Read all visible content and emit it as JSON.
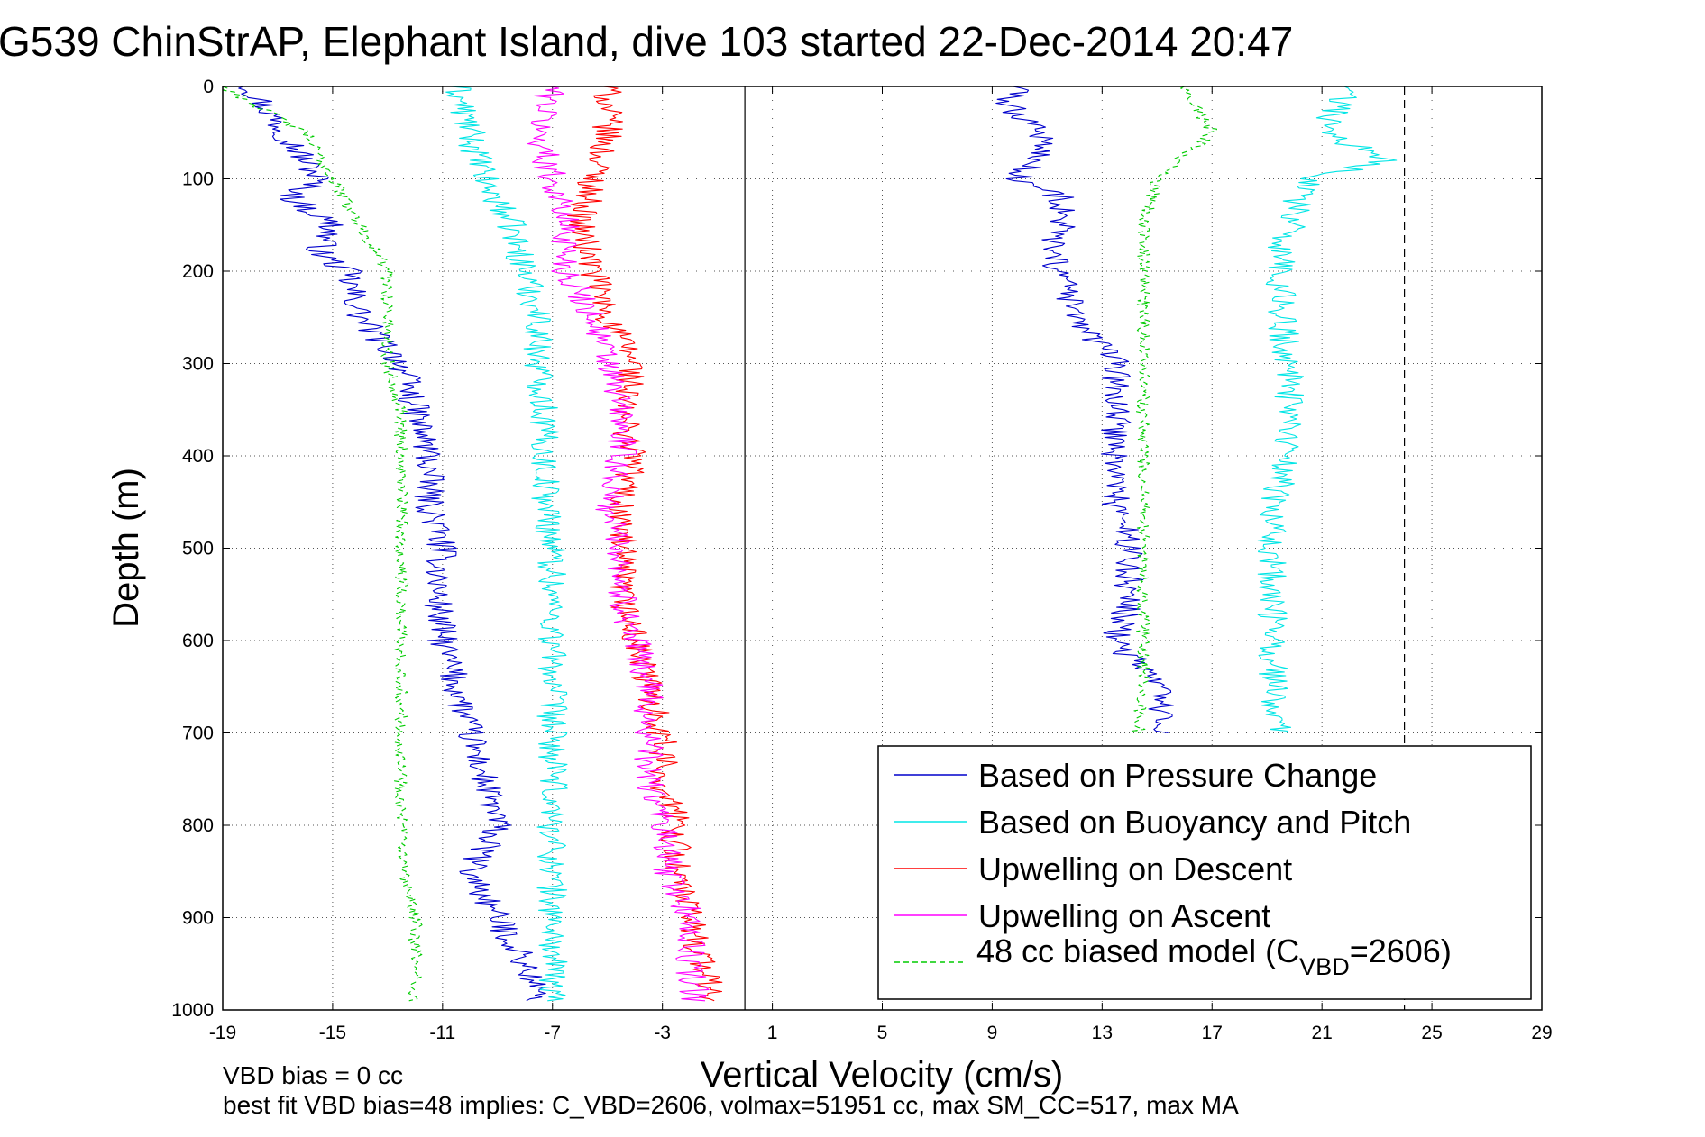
{
  "chart_data": {
    "type": "line",
    "title": "G539 ChinStrAP, Elephant Island, dive 103 started 22-Dec-2014 20:47",
    "xlabel": "Vertical Velocity (cm/s)",
    "ylabel": "Depth (m)",
    "xlim": [
      -19,
      29
    ],
    "ylim": [
      1000,
      0
    ],
    "y_reversed": true,
    "x_ticks": [
      -19,
      -15,
      -11,
      -7,
      -3,
      1,
      5,
      9,
      13,
      17,
      21,
      25,
      29
    ],
    "y_ticks": [
      0,
      100,
      200,
      300,
      400,
      500,
      600,
      700,
      800,
      900,
      1000
    ],
    "grid": true,
    "legend_position": "bottom-right",
    "reference_lines": [
      {
        "style": "solid",
        "x": 0
      },
      {
        "style": "dashed",
        "x": 24
      }
    ],
    "series": [
      {
        "name": "Based on Pressure Change",
        "color": "#0000cc",
        "style": "solid",
        "segments": [
          {
            "depth": [
              0,
              20,
              40,
              60,
              80,
              100,
              120,
              150,
              180,
              200,
              250,
              300,
              350,
              400,
              450,
              500,
              550,
              600,
              650,
              700,
              750,
              800,
              850,
              900,
              950,
              990
            ],
            "x": [
              -18,
              -17.5,
              -17,
              -16.5,
              -16,
              -15.5,
              -16.5,
              -15,
              -15.5,
              -14.5,
              -14,
              -12.5,
              -12,
              -11.5,
              -11.5,
              -11,
              -11.2,
              -11,
              -10.5,
              -10,
              -9.5,
              -9,
              -10,
              -9,
              -8,
              -7.5
            ]
          },
          {
            "depth": [
              0,
              20,
              40,
              60,
              80,
              100,
              120,
              150,
              180,
              200,
              250,
              300,
              350,
              400,
              450,
              500,
              550,
              600,
              650,
              700
            ],
            "x": [
              10,
              9.5,
              10.5,
              11,
              10.5,
              10,
              11.5,
              11.5,
              11,
              11.5,
              12,
              13.5,
              13.5,
              13.5,
              13.5,
              14,
              14,
              13.5,
              15,
              15.2
            ]
          }
        ]
      },
      {
        "name": "Based on Buoyancy and Pitch",
        "color": "#00e5e5",
        "style": "solid",
        "segments": [
          {
            "depth": [
              0,
              50,
              100,
              150,
              200,
              250,
              300,
              350,
              400,
              450,
              500,
              550,
              600,
              650,
              700,
              750,
              800,
              850,
              900,
              950,
              990
            ],
            "x": [
              -10.5,
              -10,
              -9.5,
              -8.5,
              -8,
              -7.5,
              -7.5,
              -7.3,
              -7.3,
              -7.2,
              -7,
              -7,
              -7,
              -7,
              -7,
              -7,
              -7,
              -7,
              -7,
              -7,
              -7
            ]
          },
          {
            "depth": [
              0,
              50,
              80,
              100,
              130,
              150,
              160,
              200,
              250,
              300,
              350,
              400,
              450,
              500,
              550,
              600,
              650,
              700
            ],
            "x": [
              22,
              21,
              23.5,
              20.5,
              20,
              20,
              19.5,
              19.5,
              19.5,
              19.8,
              19.8,
              19.8,
              19.2,
              19.2,
              19.2,
              19.2,
              19.2,
              19.5
            ]
          }
        ]
      },
      {
        "name": "Upwelling on Descent",
        "color": "#ff0000",
        "style": "solid",
        "segments": [
          {
            "depth": [
              0,
              50,
              100,
              150,
              200,
              250,
              300,
              350,
              400,
              450,
              500,
              550,
              600,
              650,
              700,
              750,
              800,
              850,
              900,
              950,
              990
            ],
            "x": [
              -5,
              -5,
              -5.5,
              -6,
              -5.5,
              -5,
              -4,
              -4.5,
              -4,
              -4.5,
              -4.5,
              -4.5,
              -4,
              -3.5,
              -3,
              -3,
              -2.5,
              -2.5,
              -2,
              -1.5,
              -1.2
            ]
          }
        ]
      },
      {
        "name": "Upwelling on Ascent",
        "color": "#ff00ff",
        "style": "solid",
        "segments": [
          {
            "depth": [
              0,
              50,
              100,
              150,
              200,
              250,
              300,
              350,
              400,
              450,
              500,
              550,
              600,
              650,
              700,
              750,
              800,
              850,
              900,
              950,
              990
            ],
            "x": [
              -7,
              -7.5,
              -7,
              -6.5,
              -6.5,
              -5.5,
              -5,
              -4.5,
              -4.5,
              -5,
              -4.5,
              -4.5,
              -4,
              -3.5,
              -3.5,
              -3.5,
              -3,
              -2.8,
              -2,
              -2,
              -1.8
            ]
          }
        ]
      },
      {
        "name": "48 cc biased model (C_VBD=2606)",
        "color": "#00cc00",
        "style": "dashed",
        "segments": [
          {
            "depth": [
              0,
              50,
              100,
              150,
              200,
              250,
              300,
              350,
              400,
              450,
              500,
              550,
              600,
              650,
              700,
              750,
              800,
              850,
              900,
              950,
              990
            ],
            "x": [
              -19,
              -16,
              -15,
              -14,
              -13,
              -13,
              -13,
              -12.5,
              -12.5,
              -12.5,
              -12.5,
              -12.5,
              -12.5,
              -12.5,
              -12.5,
              -12.5,
              -12.5,
              -12.5,
              -12,
              -12,
              -12
            ]
          },
          {
            "depth": [
              0,
              50,
              100,
              150,
              200,
              250,
              300,
              350,
              400,
              450,
              500,
              550,
              600,
              650,
              700
            ],
            "x": [
              16,
              17,
              15,
              14.5,
              14.5,
              14.5,
              14.5,
              14.5,
              14.5,
              14.5,
              14.5,
              14.5,
              14.5,
              14.5,
              14.3
            ]
          }
        ]
      }
    ]
  },
  "legend": {
    "items": [
      {
        "label": "Based on Pressure Change",
        "color": "#0000cc",
        "dash": ""
      },
      {
        "label": "Based on Buoyancy and Pitch",
        "color": "#00e5e5",
        "dash": ""
      },
      {
        "label": "Upwelling on Descent",
        "color": "#ff0000",
        "dash": ""
      },
      {
        "label": "Upwelling on Ascent",
        "color": "#ff00ff",
        "dash": ""
      }
    ],
    "model_label_prefix": "48 cc biased model (C",
    "model_label_sub": "VBD",
    "model_label_suffix": "=2606)",
    "model_color": "#00cc00"
  },
  "notes": {
    "line1": "VBD bias = 0 cc",
    "line2": "best fit VBD bias=48 implies: C_VBD=2606, volmax=51951 cc, max SM_CC=517, max MA"
  }
}
